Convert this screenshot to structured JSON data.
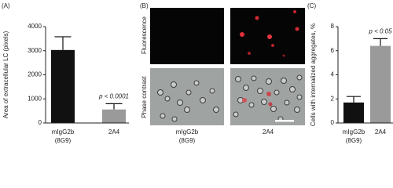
{
  "chart_data": [
    {
      "type": "bar",
      "panel_label": "(A)",
      "y_label": "Area of extracellular LC (pixels)",
      "categories": [
        [
          "mIgG2b",
          "(8G9)"
        ],
        [
          "2A4"
        ]
      ],
      "values": [
        3030,
        560
      ],
      "errors": [
        550,
        240
      ],
      "colors": [
        "#111111",
        "#9a9a9a"
      ],
      "ylim": [
        0,
        4000
      ],
      "yticks": [
        0,
        1000,
        2000,
        3000,
        4000
      ],
      "annotation": "p < 0.0001",
      "grid": false
    },
    {
      "type": "bar",
      "panel_label": "(C)",
      "y_label": "Cells with internalized aggregates, %",
      "categories": [
        [
          "mIgG2b",
          "(8G9)"
        ],
        [
          "2A4"
        ]
      ],
      "values": [
        1.7,
        6.4
      ],
      "errors": [
        0.5,
        0.6
      ],
      "colors": [
        "#111111",
        "#9a9a9a"
      ],
      "ylim": [
        0,
        8
      ],
      "yticks": [
        0,
        2,
        4,
        6,
        8
      ],
      "annotation": "p < 0.05",
      "grid": false
    }
  ],
  "panel_b": {
    "panel_label": "(B)",
    "rows": [
      "Fluorescence",
      "Phase contrast"
    ],
    "columns": [
      [
        "mIgG2b",
        "(8G9)"
      ],
      [
        "2A4"
      ]
    ]
  }
}
